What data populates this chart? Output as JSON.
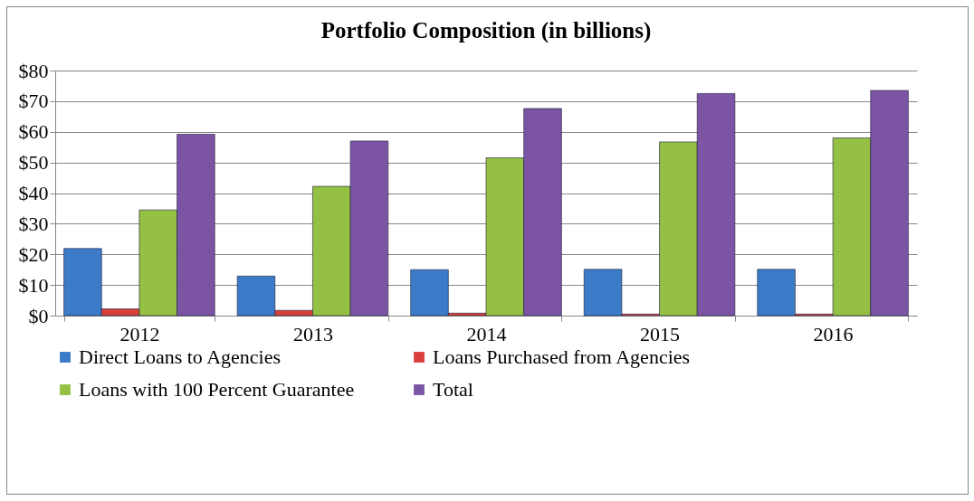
{
  "chart_data": {
    "type": "bar",
    "title": "Portfolio Composition (in billions)",
    "categories": [
      "2012",
      "2013",
      "2014",
      "2015",
      "2016"
    ],
    "series": [
      {
        "name": "Direct Loans to Agencies",
        "color": "#3c7bc7",
        "values": [
          21.9,
          12.9,
          15,
          15.1,
          15.1
        ]
      },
      {
        "name": "Loans Purchased from Agencies",
        "color": "#d9403b",
        "values": [
          2.2,
          1.7,
          0.8,
          0.5,
          0.5
        ]
      },
      {
        "name": "Loans with 100 Percent Guarantee",
        "color": "#94c043",
        "values": [
          34.5,
          42.2,
          51.5,
          56.7,
          58
        ]
      },
      {
        "name": "Total",
        "color": "#7b55a3",
        "values": [
          59.2,
          57,
          67.6,
          72.5,
          73.5
        ]
      }
    ],
    "ylim": [
      0,
      80
    ],
    "yticks": [
      {
        "value": 0,
        "label": "$0"
      },
      {
        "value": 10,
        "label": "$10"
      },
      {
        "value": 20,
        "label": "$20"
      },
      {
        "value": 30,
        "label": "$30"
      },
      {
        "value": 40,
        "label": "$40"
      },
      {
        "value": 50,
        "label": "$50"
      },
      {
        "value": 60,
        "label": "$60"
      },
      {
        "value": 70,
        "label": "$70"
      },
      {
        "value": 80,
        "label": "$80"
      }
    ],
    "grid": "y",
    "legend": "bottom"
  }
}
